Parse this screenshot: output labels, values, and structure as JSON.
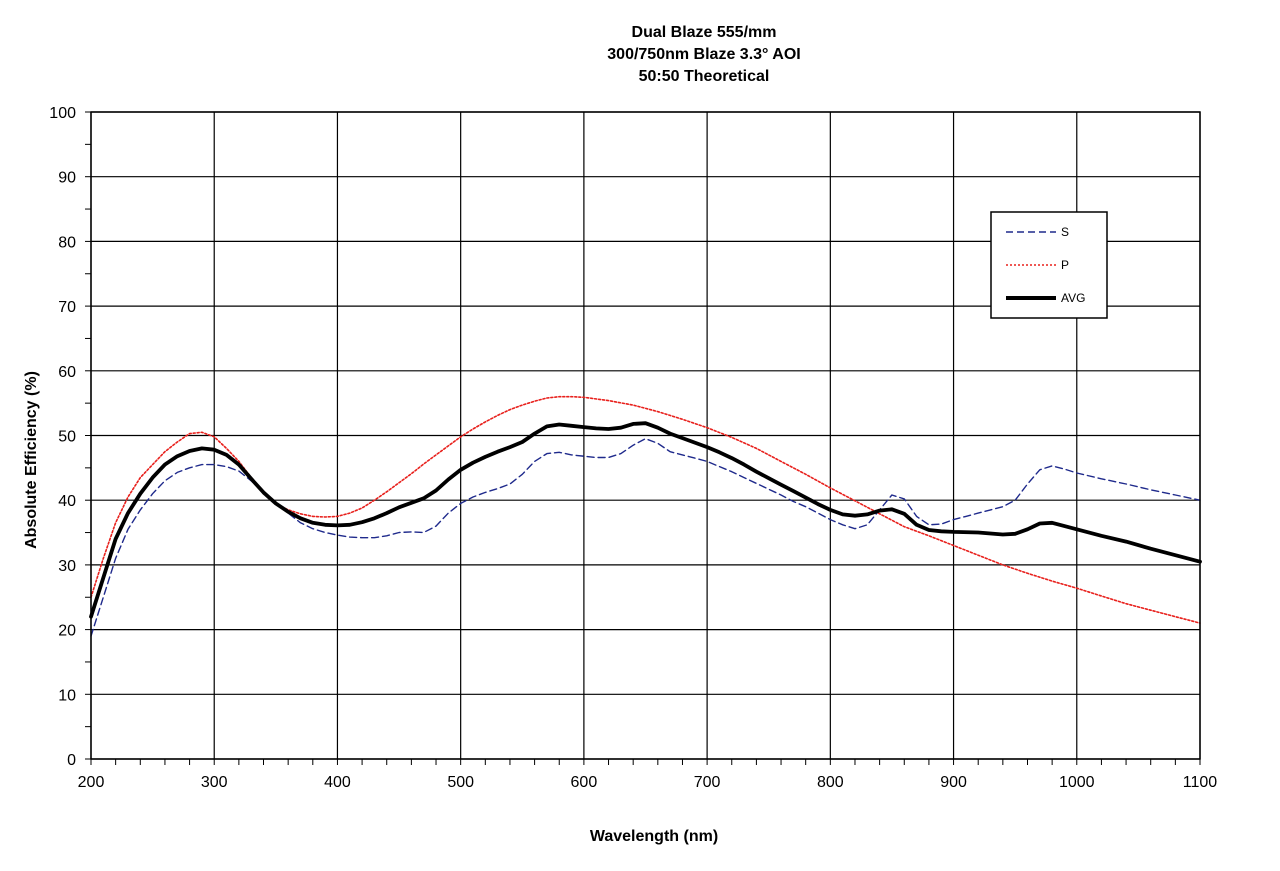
{
  "chart_data": {
    "type": "line",
    "title": [
      "Dual Blaze 555/mm",
      "300/750nm Blaze 3.3° AOI",
      "50:50  Theoretical"
    ],
    "xlabel": "Wavelength (nm)",
    "ylabel": "Absolute  Efficiency (%)",
    "xlim": [
      200,
      1100
    ],
    "ylim": [
      0,
      100
    ],
    "xticks": [
      200,
      300,
      400,
      500,
      600,
      700,
      800,
      900,
      1000,
      1100
    ],
    "yticks": [
      0,
      10,
      20,
      30,
      40,
      50,
      60,
      70,
      80,
      90,
      100
    ],
    "grid": true,
    "legend_position": "top-right",
    "series": [
      {
        "name": "S",
        "color": "#1f2a8c",
        "style": "dashed",
        "points": [
          [
            200,
            19
          ],
          [
            210,
            25
          ],
          [
            220,
            31
          ],
          [
            230,
            35.5
          ],
          [
            240,
            38.5
          ],
          [
            250,
            41
          ],
          [
            260,
            43
          ],
          [
            270,
            44.3
          ],
          [
            280,
            45
          ],
          [
            290,
            45.5
          ],
          [
            300,
            45.5
          ],
          [
            310,
            45.2
          ],
          [
            320,
            44.5
          ],
          [
            330,
            43
          ],
          [
            340,
            41.2
          ],
          [
            350,
            39.5
          ],
          [
            360,
            38
          ],
          [
            370,
            36.5
          ],
          [
            380,
            35.6
          ],
          [
            390,
            35
          ],
          [
            400,
            34.6
          ],
          [
            410,
            34.3
          ],
          [
            420,
            34.2
          ],
          [
            430,
            34.2
          ],
          [
            440,
            34.5
          ],
          [
            450,
            35
          ],
          [
            460,
            35.1
          ],
          [
            470,
            35
          ],
          [
            480,
            36
          ],
          [
            490,
            38
          ],
          [
            500,
            39.5
          ],
          [
            510,
            40.5
          ],
          [
            520,
            41.2
          ],
          [
            530,
            41.8
          ],
          [
            540,
            42.5
          ],
          [
            550,
            44
          ],
          [
            560,
            46
          ],
          [
            570,
            47.2
          ],
          [
            580,
            47.4
          ],
          [
            590,
            47
          ],
          [
            600,
            46.8
          ],
          [
            610,
            46.6
          ],
          [
            620,
            46.6
          ],
          [
            630,
            47.2
          ],
          [
            640,
            48.5
          ],
          [
            650,
            49.5
          ],
          [
            660,
            48.8
          ],
          [
            670,
            47.5
          ],
          [
            680,
            47
          ],
          [
            690,
            46.5
          ],
          [
            700,
            46
          ],
          [
            710,
            45.2
          ],
          [
            720,
            44.4
          ],
          [
            730,
            43.5
          ],
          [
            740,
            42.6
          ],
          [
            750,
            41.7
          ],
          [
            760,
            40.8
          ],
          [
            770,
            39.8
          ],
          [
            780,
            39
          ],
          [
            790,
            38
          ],
          [
            800,
            37
          ],
          [
            810,
            36.2
          ],
          [
            820,
            35.6
          ],
          [
            830,
            36.2
          ],
          [
            840,
            38.5
          ],
          [
            850,
            40.8
          ],
          [
            860,
            40.2
          ],
          [
            870,
            37.5
          ],
          [
            880,
            36.2
          ],
          [
            890,
            36.3
          ],
          [
            900,
            37
          ],
          [
            910,
            37.5
          ],
          [
            920,
            38
          ],
          [
            930,
            38.5
          ],
          [
            940,
            39
          ],
          [
            950,
            40
          ],
          [
            960,
            42.5
          ],
          [
            970,
            44.7
          ],
          [
            980,
            45.3
          ],
          [
            990,
            44.8
          ],
          [
            1000,
            44.2
          ],
          [
            1020,
            43.3
          ],
          [
            1040,
            42.5
          ],
          [
            1060,
            41.6
          ],
          [
            1080,
            40.8
          ],
          [
            1100,
            40
          ]
        ]
      },
      {
        "name": "P",
        "color": "#e8201c",
        "style": "dotted",
        "points": [
          [
            200,
            25
          ],
          [
            210,
            31
          ],
          [
            220,
            36.5
          ],
          [
            230,
            40.5
          ],
          [
            240,
            43.5
          ],
          [
            250,
            45.5
          ],
          [
            260,
            47.5
          ],
          [
            270,
            49
          ],
          [
            280,
            50.3
          ],
          [
            290,
            50.5
          ],
          [
            300,
            49.8
          ],
          [
            310,
            48
          ],
          [
            320,
            46
          ],
          [
            330,
            43.5
          ],
          [
            340,
            41
          ],
          [
            350,
            39.5
          ],
          [
            360,
            38.5
          ],
          [
            370,
            37.9
          ],
          [
            380,
            37.5
          ],
          [
            390,
            37.4
          ],
          [
            400,
            37.5
          ],
          [
            410,
            38
          ],
          [
            420,
            38.8
          ],
          [
            430,
            40
          ],
          [
            440,
            41.3
          ],
          [
            450,
            42.7
          ],
          [
            460,
            44.1
          ],
          [
            470,
            45.6
          ],
          [
            480,
            47
          ],
          [
            490,
            48.4
          ],
          [
            500,
            49.8
          ],
          [
            510,
            51
          ],
          [
            520,
            52.1
          ],
          [
            530,
            53.1
          ],
          [
            540,
            54
          ],
          [
            550,
            54.7
          ],
          [
            560,
            55.3
          ],
          [
            570,
            55.8
          ],
          [
            580,
            56
          ],
          [
            590,
            56
          ],
          [
            600,
            55.9
          ],
          [
            620,
            55.4
          ],
          [
            640,
            54.7
          ],
          [
            660,
            53.7
          ],
          [
            680,
            52.5
          ],
          [
            700,
            51.2
          ],
          [
            720,
            49.7
          ],
          [
            740,
            48
          ],
          [
            760,
            46
          ],
          [
            780,
            44
          ],
          [
            800,
            41.9
          ],
          [
            820,
            39.9
          ],
          [
            840,
            37.9
          ],
          [
            860,
            35.9
          ],
          [
            880,
            34.5
          ],
          [
            900,
            33
          ],
          [
            920,
            31.5
          ],
          [
            940,
            30
          ],
          [
            960,
            28.7
          ],
          [
            980,
            27.5
          ],
          [
            1000,
            26.4
          ],
          [
            1020,
            25.2
          ],
          [
            1040,
            24
          ],
          [
            1060,
            23
          ],
          [
            1080,
            22
          ],
          [
            1100,
            21
          ]
        ]
      },
      {
        "name": "AVG",
        "color": "#000000",
        "style": "solid",
        "points": [
          [
            200,
            22
          ],
          [
            210,
            28
          ],
          [
            220,
            34
          ],
          [
            230,
            38
          ],
          [
            240,
            41
          ],
          [
            250,
            43.5
          ],
          [
            260,
            45.5
          ],
          [
            270,
            46.8
          ],
          [
            280,
            47.6
          ],
          [
            290,
            48
          ],
          [
            300,
            47.8
          ],
          [
            310,
            47
          ],
          [
            320,
            45.5
          ],
          [
            330,
            43.3
          ],
          [
            340,
            41.2
          ],
          [
            350,
            39.5
          ],
          [
            360,
            38.2
          ],
          [
            370,
            37.2
          ],
          [
            380,
            36.5
          ],
          [
            390,
            36.2
          ],
          [
            400,
            36.1
          ],
          [
            410,
            36.2
          ],
          [
            420,
            36.6
          ],
          [
            430,
            37.2
          ],
          [
            440,
            38
          ],
          [
            450,
            38.9
          ],
          [
            460,
            39.6
          ],
          [
            470,
            40.3
          ],
          [
            480,
            41.5
          ],
          [
            490,
            43.2
          ],
          [
            500,
            44.7
          ],
          [
            510,
            45.8
          ],
          [
            520,
            46.7
          ],
          [
            530,
            47.5
          ],
          [
            540,
            48.2
          ],
          [
            550,
            49
          ],
          [
            560,
            50.3
          ],
          [
            570,
            51.4
          ],
          [
            580,
            51.7
          ],
          [
            590,
            51.5
          ],
          [
            600,
            51.3
          ],
          [
            610,
            51.1
          ],
          [
            620,
            51
          ],
          [
            630,
            51.2
          ],
          [
            640,
            51.8
          ],
          [
            650,
            51.9
          ],
          [
            660,
            51.2
          ],
          [
            670,
            50.3
          ],
          [
            680,
            49.6
          ],
          [
            690,
            48.9
          ],
          [
            700,
            48.2
          ],
          [
            710,
            47.4
          ],
          [
            720,
            46.5
          ],
          [
            730,
            45.5
          ],
          [
            740,
            44.4
          ],
          [
            750,
            43.4
          ],
          [
            760,
            42.4
          ],
          [
            770,
            41.4
          ],
          [
            780,
            40.4
          ],
          [
            790,
            39.4
          ],
          [
            800,
            38.5
          ],
          [
            810,
            37.8
          ],
          [
            820,
            37.6
          ],
          [
            830,
            37.8
          ],
          [
            840,
            38.4
          ],
          [
            850,
            38.6
          ],
          [
            860,
            37.9
          ],
          [
            870,
            36.2
          ],
          [
            880,
            35.4
          ],
          [
            890,
            35.2
          ],
          [
            900,
            35.1
          ],
          [
            920,
            35
          ],
          [
            940,
            34.7
          ],
          [
            950,
            34.8
          ],
          [
            960,
            35.5
          ],
          [
            970,
            36.4
          ],
          [
            980,
            36.5
          ],
          [
            990,
            36
          ],
          [
            1000,
            35.5
          ],
          [
            1020,
            34.5
          ],
          [
            1040,
            33.6
          ],
          [
            1060,
            32.5
          ],
          [
            1080,
            31.5
          ],
          [
            1100,
            30.5
          ]
        ]
      }
    ]
  }
}
